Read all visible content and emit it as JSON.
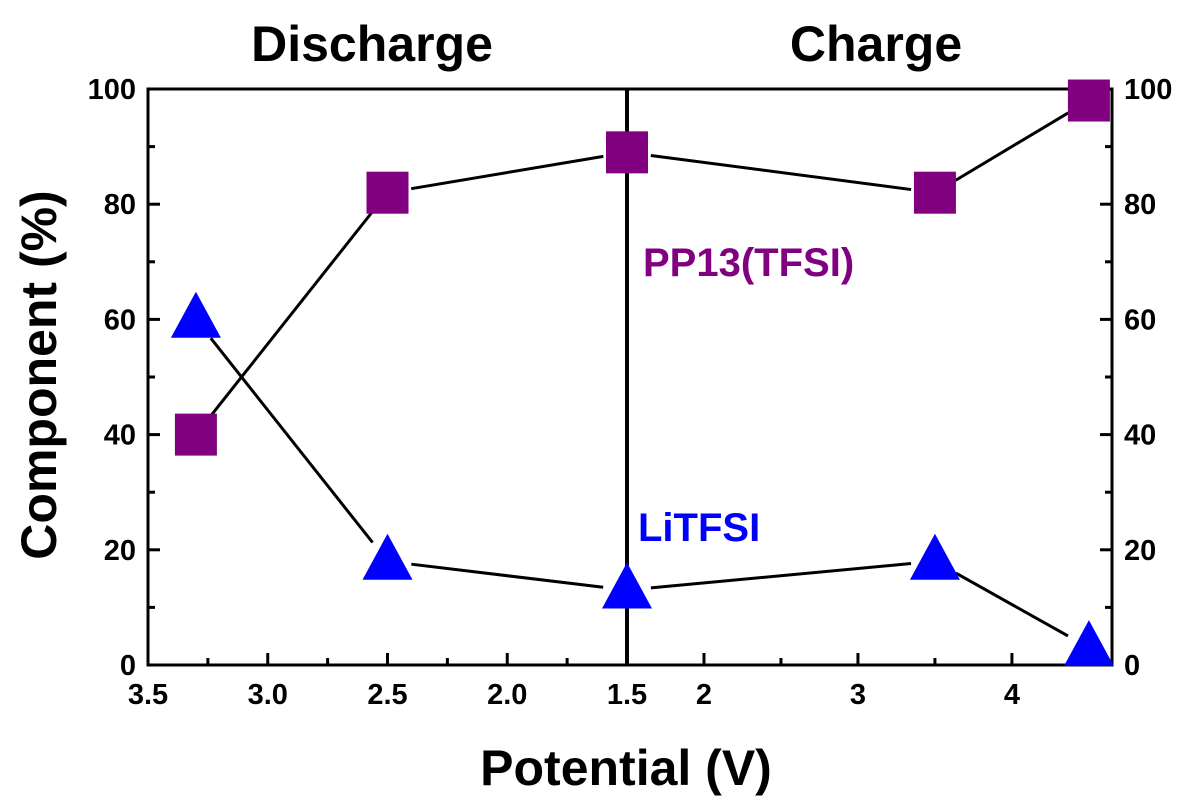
{
  "chart_data": {
    "type": "scatter",
    "title_left": "Discharge",
    "title_right": "Charge",
    "xlabel": "Potential (V)",
    "ylabel": "Component (%)",
    "ylim": [
      0,
      100
    ],
    "y_ticks": [
      "0",
      "20",
      "40",
      "60",
      "80",
      "100"
    ],
    "x_segments": [
      {
        "phase": "Discharge",
        "xlim": [
          3.5,
          1.5
        ],
        "ticks": [
          "3.5",
          "3.0",
          "2.5",
          "2.0",
          "1.5"
        ]
      },
      {
        "phase": "Charge",
        "xlim": [
          1.5,
          4.65
        ],
        "ticks": [
          "2",
          "3",
          "4"
        ]
      }
    ],
    "x_points": [
      {
        "phase": "Discharge",
        "x": 3.3
      },
      {
        "phase": "Discharge",
        "x": 2.5
      },
      {
        "phase": "Discharge",
        "x": 1.5
      },
      {
        "phase": "Charge",
        "x": 3.5
      },
      {
        "phase": "Charge",
        "x": 4.5
      }
    ],
    "divider_at": 1.5,
    "series": [
      {
        "name": "PP13(TFSI)",
        "marker": "square",
        "color": "#800080",
        "values": [
          40,
          82,
          89,
          82,
          98
        ]
      },
      {
        "name": "LiTFSI",
        "marker": "triangle",
        "color": "#0000ff",
        "values": [
          60,
          18,
          13,
          18,
          3
        ]
      }
    ],
    "grid": false,
    "legend": "none"
  }
}
